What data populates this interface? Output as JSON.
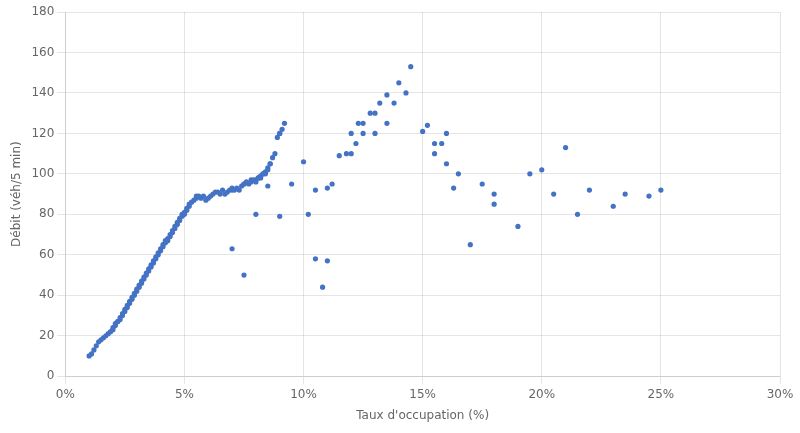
{
  "chart_data": {
    "type": "scatter",
    "xlabel": "Taux d'occupation (%)",
    "ylabel": "Débit (véh/5 min)",
    "color": "#4472C4",
    "grid": true,
    "xlim": [
      0,
      30
    ],
    "xticks": [
      {
        "value": 0,
        "label": "0%"
      },
      {
        "value": 5,
        "label": "5%"
      },
      {
        "value": 10,
        "label": "10%"
      },
      {
        "value": 15,
        "label": "15%"
      },
      {
        "value": 20,
        "label": "20%"
      },
      {
        "value": 25,
        "label": "25%"
      },
      {
        "value": 30,
        "label": "30%"
      }
    ],
    "ylim": [
      0,
      180
    ],
    "yticks": [
      0,
      20,
      40,
      60,
      80,
      100,
      120,
      140,
      160,
      180
    ],
    "x": [
      1.0,
      1.1,
      1.2,
      1.3,
      1.4,
      1.5,
      1.6,
      1.7,
      1.8,
      1.9,
      2.0,
      2.0,
      2.1,
      2.1,
      2.2,
      2.2,
      2.3,
      2.3,
      2.4,
      2.4,
      2.5,
      2.5,
      2.6,
      2.6,
      2.7,
      2.7,
      2.8,
      2.8,
      2.9,
      2.9,
      3.0,
      3.0,
      3.1,
      3.1,
      3.2,
      3.2,
      3.3,
      3.3,
      3.4,
      3.4,
      3.5,
      3.5,
      3.6,
      3.6,
      3.7,
      3.7,
      3.8,
      3.8,
      3.9,
      3.9,
      4.0,
      4.0,
      4.1,
      4.1,
      4.2,
      4.2,
      4.3,
      4.3,
      4.4,
      4.4,
      4.5,
      4.5,
      4.6,
      4.6,
      4.7,
      4.7,
      4.8,
      4.8,
      4.9,
      4.9,
      5.0,
      5.0,
      5.1,
      5.1,
      5.2,
      5.2,
      5.3,
      5.4,
      5.5,
      5.5,
      5.6,
      5.7,
      5.8,
      5.9,
      6.0,
      6.1,
      6.2,
      6.3,
      6.4,
      6.5,
      6.6,
      6.7,
      6.8,
      6.9,
      7.0,
      7.0,
      7.1,
      7.2,
      7.3,
      7.4,
      7.5,
      7.5,
      7.6,
      7.7,
      7.8,
      7.8,
      7.9,
      8.0,
      8.0,
      8.1,
      8.1,
      8.2,
      8.2,
      8.3,
      8.3,
      8.4,
      8.4,
      8.5,
      8.5,
      8.6,
      8.6,
      8.7,
      8.8,
      8.9,
      9.0,
      9.0,
      9.1,
      9.2,
      7.0,
      7.5,
      8.0,
      8.5,
      9.0,
      9.5,
      10.0,
      10.2,
      10.5,
      10.5,
      10.8,
      11.0,
      11.0,
      11.2,
      11.5,
      11.8,
      12.0,
      12.0,
      12.2,
      12.3,
      12.5,
      12.5,
      12.8,
      13.0,
      13.0,
      13.2,
      13.5,
      13.5,
      13.8,
      14.0,
      14.3,
      14.5,
      15.0,
      15.2,
      15.5,
      15.5,
      15.8,
      16.0,
      16.0,
      16.3,
      16.5,
      17.0,
      17.5,
      18.0,
      18.0,
      19.0,
      19.5,
      20.0,
      20.5,
      21.0,
      21.5,
      22.0,
      23.0,
      23.5,
      24.5,
      25.0
    ],
    "values": [
      10,
      11,
      13,
      15,
      17,
      18,
      19,
      20,
      21,
      22,
      23,
      24,
      25,
      26,
      27,
      27,
      28,
      29,
      30,
      31,
      32,
      33,
      34,
      35,
      36,
      37,
      38,
      39,
      40,
      41,
      42,
      43,
      44,
      45,
      46,
      47,
      48,
      49,
      50,
      51,
      52,
      53,
      54,
      55,
      56,
      57,
      58,
      59,
      60,
      61,
      62,
      63,
      64,
      65,
      66,
      67,
      67,
      68,
      69,
      70,
      71,
      72,
      73,
      74,
      75,
      76,
      77,
      78,
      79,
      80,
      80,
      81,
      82,
      83,
      84,
      85,
      86,
      87,
      88,
      89,
      89,
      88,
      89,
      87,
      88,
      89,
      90,
      91,
      91,
      90,
      92,
      90,
      91,
      92,
      92,
      93,
      92,
      93,
      92,
      94,
      95,
      95,
      96,
      95,
      97,
      96,
      97,
      97,
      96,
      98,
      98,
      98,
      99,
      100,
      100,
      101,
      100,
      103,
      102,
      105,
      105,
      108,
      110,
      118,
      120,
      120,
      122,
      125,
      63,
      50,
      80,
      94,
      79,
      95,
      106,
      80,
      58,
      92,
      44,
      57,
      93,
      95,
      109,
      110,
      120,
      110,
      115,
      125,
      120,
      125,
      130,
      130,
      120,
      135,
      125,
      139,
      135,
      145,
      140,
      153,
      121,
      124,
      115,
      110,
      115,
      105,
      120,
      93,
      100,
      65,
      95,
      90,
      85,
      74,
      100,
      102,
      90,
      113,
      80,
      92,
      84,
      90,
      89,
      92
    ]
  }
}
